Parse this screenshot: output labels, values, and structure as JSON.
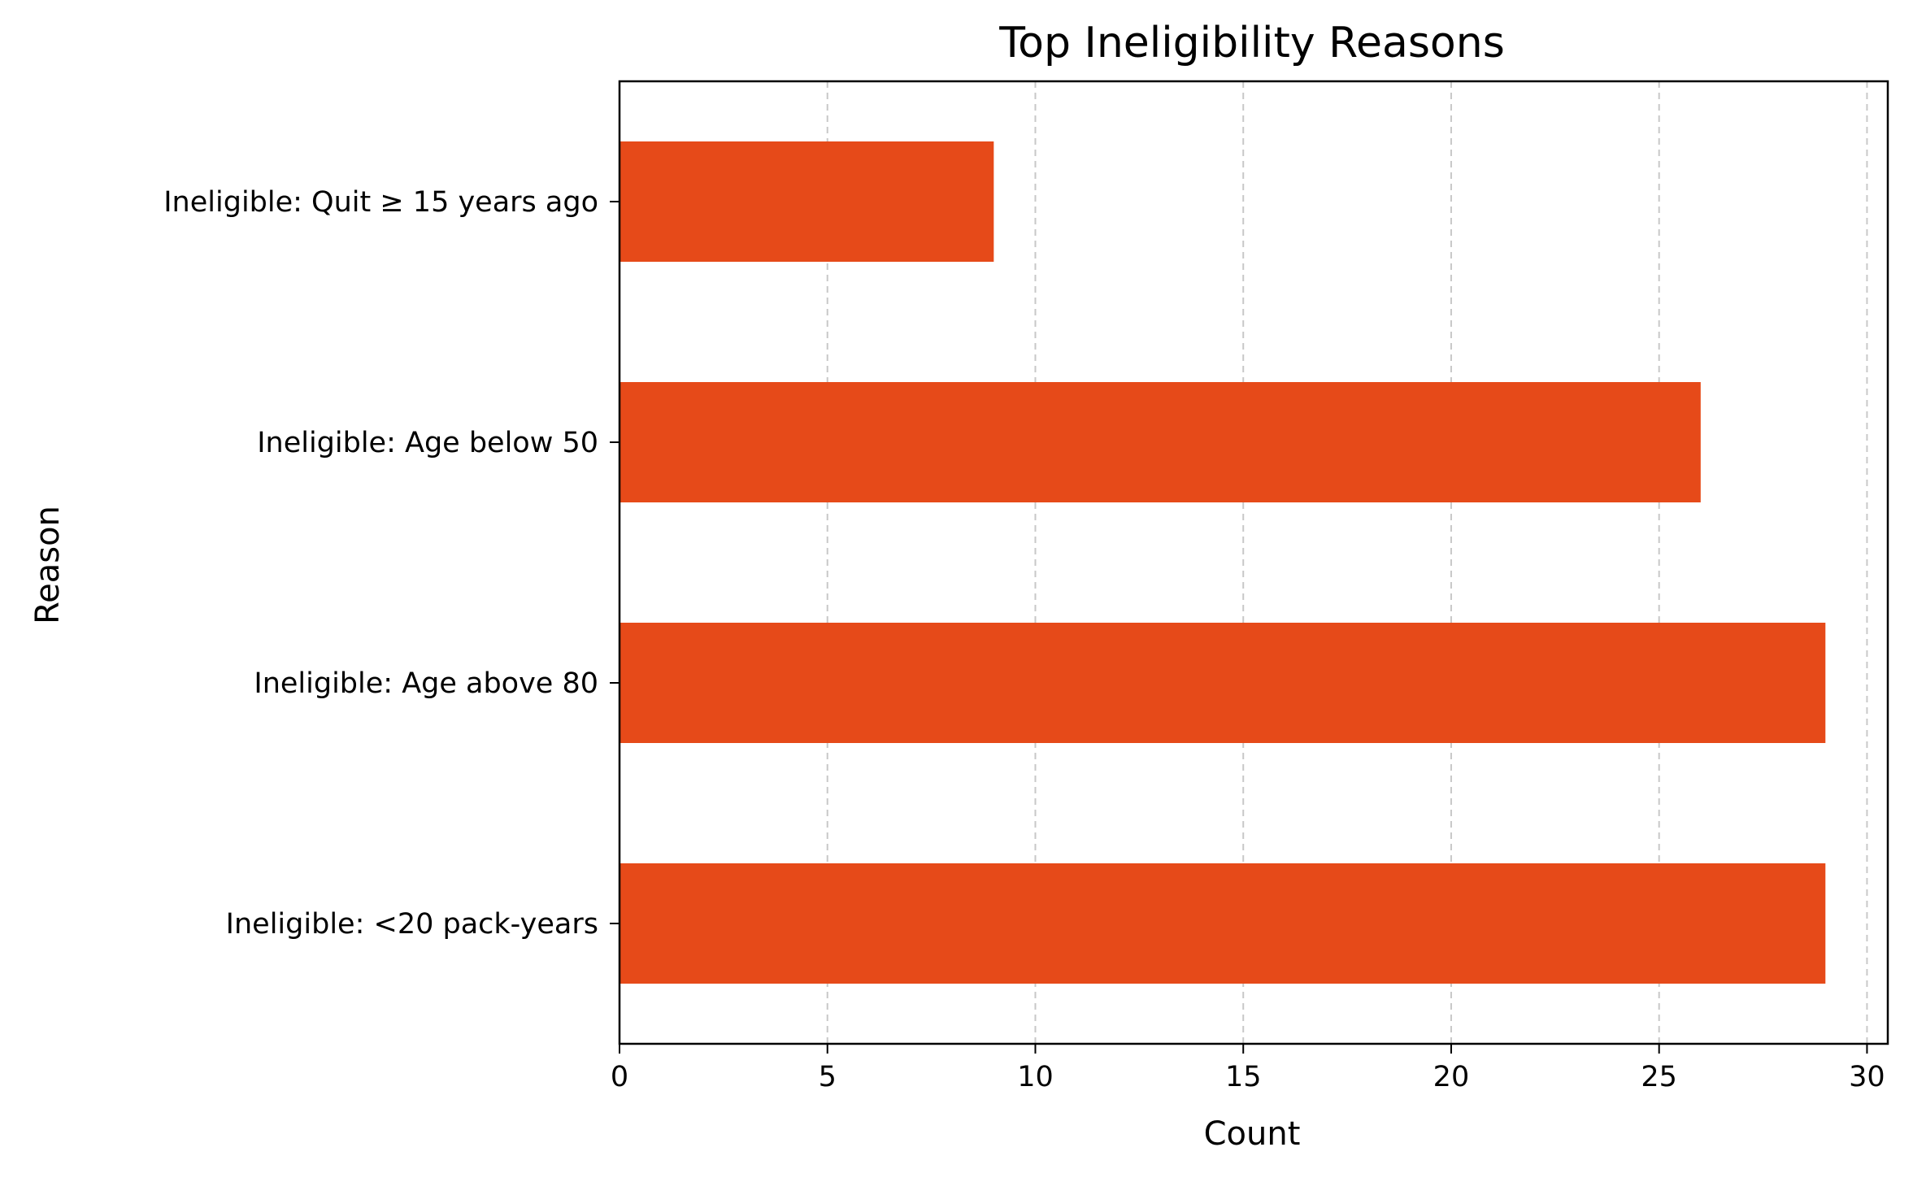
{
  "chart_data": {
    "type": "bar",
    "orientation": "horizontal",
    "title": "Top Ineligibility Reasons",
    "xlabel": "Count",
    "ylabel": "Reason",
    "categories": [
      "Ineligible: <20 pack-years",
      "Ineligible: Age above 80",
      "Ineligible: Age below 50",
      "Ineligible: Quit ≥ 15 years ago"
    ],
    "values": [
      29,
      29,
      26,
      9
    ],
    "xlim": [
      0,
      30.5
    ],
    "xticks": [
      0,
      5,
      10,
      15,
      20,
      25,
      30
    ],
    "grid": "x-dashed",
    "legend": "none",
    "bar_color": "#e64a19",
    "grid_color": "#c8c8c8"
  }
}
